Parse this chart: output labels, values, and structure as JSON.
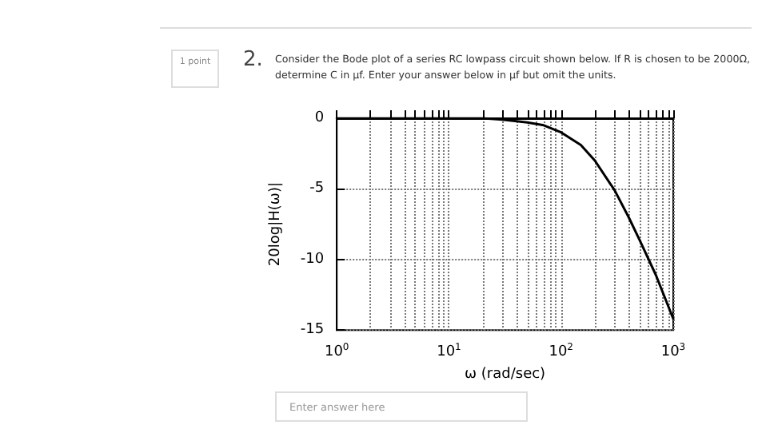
{
  "chart_data": {
    "type": "line",
    "title": "Consider the Bode plot of a series RC lowpass circuit shown below. If R is chosen to be 2000Ω, determine C in μf. Enter your answer below in μf but omit the units.",
    "annotations": [
      "1 point",
      "2.",
      "Enter answer here"
    ],
    "xlabel": "ω (rad/sec)",
    "ylabel": "20log|H(ω)|",
    "series": [
      {
        "color": "#000000",
        "x": [
          1,
          10,
          20,
          30,
          50,
          70,
          100,
          150,
          200,
          300,
          400,
          500,
          700,
          1000
        ],
        "values": [
          0,
          0,
          0,
          -0.1,
          -0.3,
          -0.5,
          -1,
          -1.9,
          -3,
          -5.1,
          -7,
          -8.6,
          -11.1,
          -14.2
        ]
      }
    ],
    "log": "x",
    "xlim": [
      1,
      1000
    ],
    "ylim": [
      -15,
      0
    ],
    "xticks": [
      {
        "value": 1,
        "label": "10$^{0}$"
      },
      {
        "value": 10,
        "label": "10$^{1}$"
      },
      {
        "value": 100,
        "label": "10$^{2}$"
      },
      {
        "value": 1000,
        "label": "10$^{3}$"
      }
    ],
    "yticks": [
      -15,
      -10,
      -5,
      0
    ],
    "grid": true,
    "marker": "none",
    "line_style": "solid"
  }
}
